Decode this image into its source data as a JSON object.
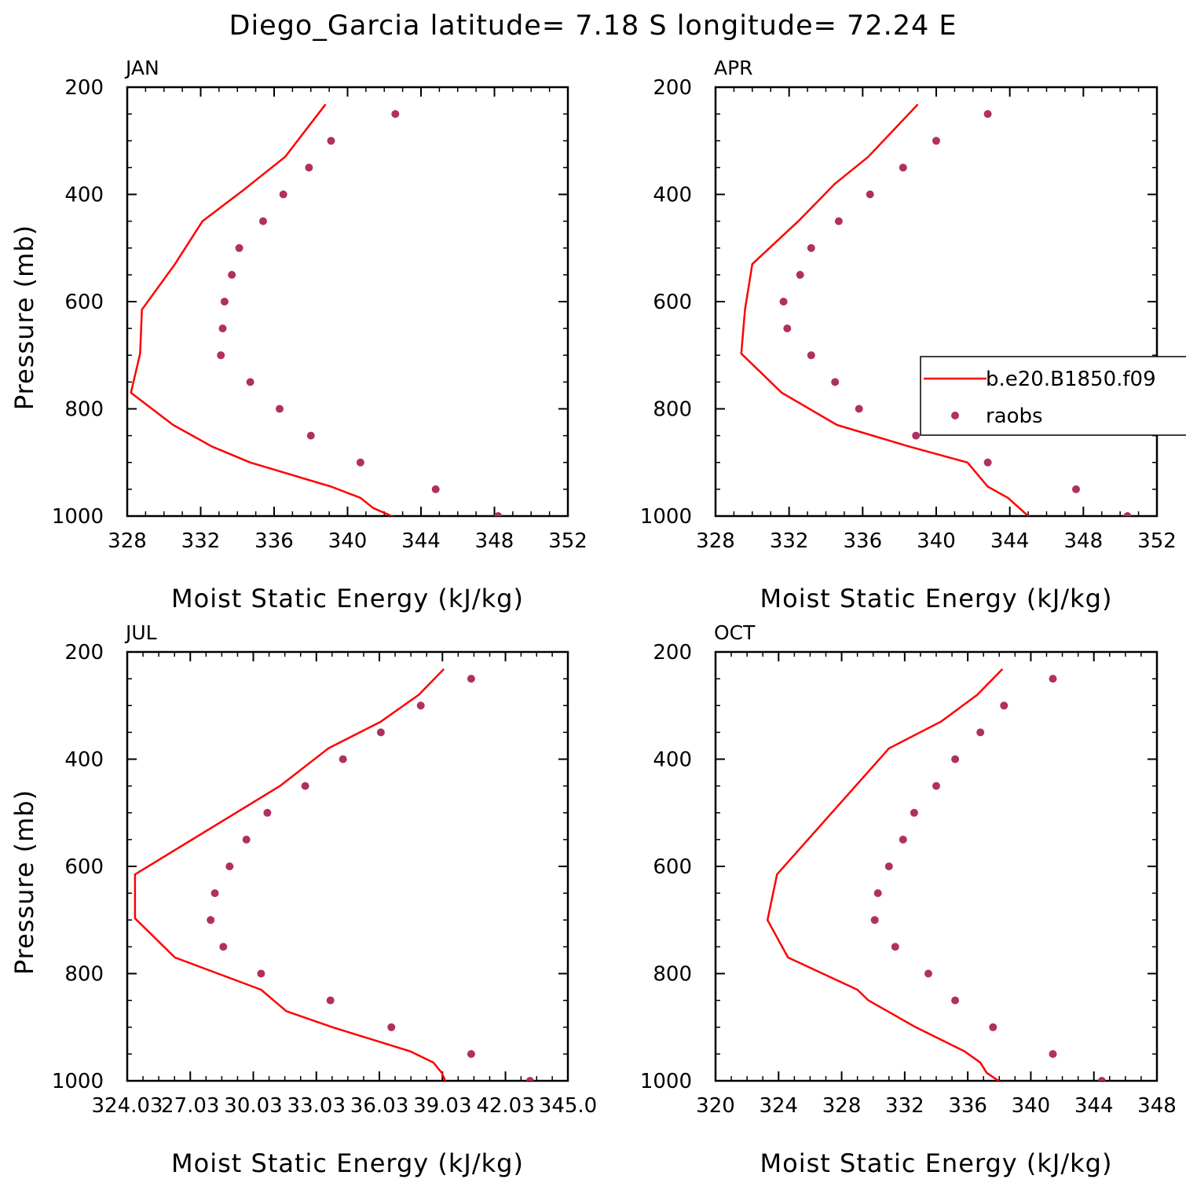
{
  "title": "Diego_Garcia  latitude= 7.18 S longitude= 72.24 E",
  "colors": {
    "model": "#ff0000",
    "obs": "#b03060",
    "axis": "#000000"
  },
  "legend": {
    "entries": [
      "b.e20.B1850.f09",
      "raobs"
    ],
    "placement": "inside upper-right panel, right side"
  },
  "chart_data": [
    {
      "type": "line",
      "panel_label": "JAN",
      "xlabel": "Moist Static Energy (kJ/kg)",
      "ylabel": "Pressure (mb)",
      "xlim": [
        328,
        352
      ],
      "ylim": [
        1000,
        200
      ],
      "xticks": [
        328,
        332,
        336,
        340,
        344,
        348,
        352
      ],
      "xtick_labels": [
        "328",
        "332",
        "336",
        "340",
        "344",
        "348",
        "352"
      ],
      "yticks": [
        200,
        400,
        600,
        800,
        1000
      ],
      "ytick_labels": [
        "200",
        "400",
        "600",
        "800",
        "1000"
      ],
      "series": [
        {
          "name": "b.e20.B1850.f09",
          "kind": "line",
          "x": [
            338.8,
            336.6,
            334.4,
            332.1,
            330.6,
            328.8,
            328.7,
            328.2,
            330.5,
            332.6,
            334.7,
            339.1,
            340.7,
            341.4,
            342.6
          ],
          "y": [
            232,
            330,
            390,
            450,
            530,
            615,
            697,
            770,
            830,
            870,
            900,
            945,
            966,
            985,
            1003
          ]
        },
        {
          "name": "raobs",
          "kind": "scatter",
          "x": [
            342.6,
            339.1,
            337.9,
            336.5,
            335.4,
            334.1,
            333.7,
            333.3,
            333.2,
            333.1,
            334.7,
            336.3,
            338.0,
            340.7,
            344.8,
            348.2
          ],
          "y": [
            250,
            300,
            350,
            400,
            450,
            500,
            550,
            600,
            650,
            700,
            750,
            800,
            850,
            900,
            950,
            1000
          ]
        }
      ]
    },
    {
      "type": "line",
      "panel_label": "APR",
      "xlabel": "Moist Static Energy (kJ/kg)",
      "ylabel": "",
      "xlim": [
        328,
        352
      ],
      "ylim": [
        1000,
        200
      ],
      "xticks": [
        328,
        332,
        336,
        340,
        344,
        348,
        352
      ],
      "xtick_labels": [
        "328",
        "332",
        "336",
        "340",
        "344",
        "348",
        "352"
      ],
      "yticks": [
        200,
        400,
        600,
        800,
        1000
      ],
      "ytick_labels": [
        "200",
        "400",
        "600",
        "800",
        "1000"
      ],
      "series": [
        {
          "name": "b.e20.B1850.f09",
          "kind": "line",
          "x": [
            339.0,
            336.3,
            334.5,
            332.5,
            330.0,
            329.6,
            329.4,
            331.6,
            334.6,
            338.5,
            341.7,
            342.8,
            343.9,
            345.1
          ],
          "y": [
            232,
            330,
            380,
            450,
            530,
            615,
            697,
            770,
            830,
            870,
            900,
            945,
            966,
            1003
          ]
        },
        {
          "name": "raobs",
          "kind": "scatter",
          "x": [
            342.8,
            340.0,
            338.2,
            336.4,
            334.7,
            333.2,
            332.6,
            331.7,
            331.9,
            333.2,
            334.5,
            335.8,
            338.9,
            342.8,
            347.6,
            350.4
          ],
          "y": [
            250,
            300,
            350,
            400,
            450,
            500,
            550,
            600,
            650,
            700,
            750,
            800,
            850,
            900,
            950,
            1000
          ]
        }
      ]
    },
    {
      "type": "line",
      "panel_label": "JUL",
      "xlabel": "Moist Static Energy (kJ/kg)",
      "ylabel": "Pressure (mb)",
      "xlim": [
        324.03,
        345.0
      ],
      "ylim": [
        1000,
        200
      ],
      "xticks": [
        324.03,
        327.03,
        330.03,
        333.03,
        336.03,
        339.03,
        342.03,
        345.0
      ],
      "xtick_labels": [
        "324.03",
        "27.03",
        "30.03",
        "33.03",
        "36.03",
        "39.03",
        "42.03",
        "345.0"
      ],
      "yticks": [
        200,
        400,
        600,
        800,
        1000
      ],
      "ytick_labels": [
        "200",
        "400",
        "600",
        "800",
        "1000"
      ],
      "series": [
        {
          "name": "b.e20.B1850.f09",
          "kind": "line",
          "x": [
            339.1,
            337.9,
            336.1,
            333.6,
            331.3,
            324.4,
            324.4,
            326.3,
            330.4,
            331.6,
            333.8,
            337.5,
            338.6,
            339.0,
            339.2
          ],
          "y": [
            232,
            280,
            330,
            380,
            450,
            615,
            697,
            770,
            830,
            870,
            900,
            945,
            966,
            985,
            1003
          ]
        },
        {
          "name": "raobs",
          "kind": "scatter",
          "x": [
            340.4,
            338.0,
            336.1,
            334.3,
            332.5,
            330.7,
            329.7,
            328.9,
            328.2,
            328.0,
            328.6,
            330.4,
            333.7,
            336.6,
            340.4,
            343.2
          ],
          "y": [
            250,
            300,
            350,
            400,
            450,
            500,
            550,
            600,
            650,
            700,
            750,
            800,
            850,
            900,
            950,
            1000
          ]
        }
      ]
    },
    {
      "type": "line",
      "panel_label": "OCT",
      "xlabel": "Moist Static Energy (kJ/kg)",
      "ylabel": "",
      "xlim": [
        320,
        348
      ],
      "ylim": [
        1000,
        200
      ],
      "xticks": [
        320,
        324,
        328,
        332,
        336,
        340,
        344,
        348
      ],
      "xtick_labels": [
        "320",
        "324",
        "328",
        "332",
        "336",
        "340",
        "344",
        "348"
      ],
      "yticks": [
        200,
        400,
        600,
        800,
        1000
      ],
      "ytick_labels": [
        "200",
        "400",
        "600",
        "800",
        "1000"
      ],
      "series": [
        {
          "name": "b.e20.B1850.f09",
          "kind": "line",
          "x": [
            338.2,
            336.6,
            334.3,
            331.0,
            323.9,
            323.3,
            324.6,
            329.0,
            329.7,
            330.9,
            332.7,
            335.8,
            336.8,
            337.2,
            338.1
          ],
          "y": [
            232,
            280,
            330,
            380,
            615,
            700,
            770,
            830,
            850,
            870,
            900,
            945,
            966,
            985,
            1003
          ]
        },
        {
          "name": "raobs",
          "kind": "scatter",
          "x": [
            341.4,
            338.3,
            336.8,
            335.2,
            334.0,
            332.6,
            331.9,
            331.0,
            330.3,
            330.1,
            331.4,
            333.5,
            335.2,
            337.6,
            341.4,
            344.5
          ],
          "y": [
            250,
            300,
            350,
            400,
            450,
            500,
            550,
            600,
            650,
            700,
            750,
            800,
            850,
            900,
            950,
            1000
          ]
        }
      ]
    }
  ]
}
